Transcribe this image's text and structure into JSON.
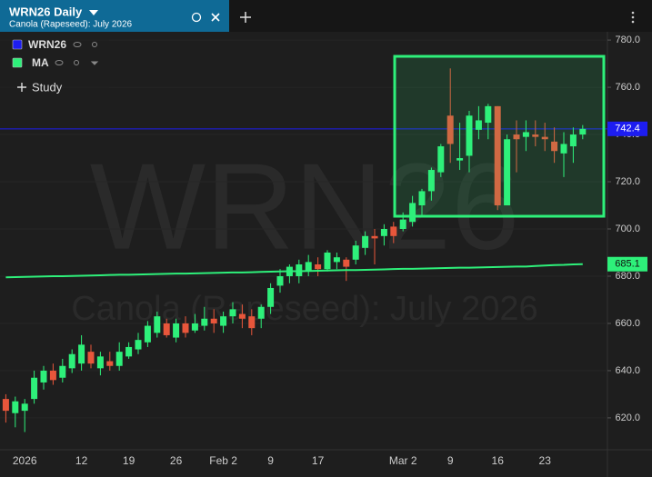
{
  "tab": {
    "title": "WRN26 Daily",
    "subtitle": "Canola (Rapeseed): July 2026"
  },
  "study_button": "Study",
  "chart_data": {
    "type": "candlestick",
    "categories": [
      null,
      null,
      "2026",
      null,
      null,
      null,
      null,
      null,
      "12",
      null,
      null,
      null,
      null,
      "19",
      null,
      null,
      null,
      null,
      "26",
      null,
      null,
      null,
      null,
      "Feb 2",
      null,
      null,
      null,
      null,
      "9",
      null,
      null,
      null,
      null,
      "17",
      null,
      null,
      null,
      null,
      null,
      null,
      null,
      null,
      "Mar 2",
      null,
      null,
      null,
      null,
      "9",
      null,
      null,
      null,
      null,
      "16",
      null,
      null,
      null,
      null,
      "23",
      null,
      null,
      null,
      null
    ],
    "series": [
      {
        "name": "WRN26",
        "color": "#1d1df0",
        "open": [
          628,
          622,
          623,
          628,
          635,
          640,
          637,
          641,
          643,
          648,
          641,
          644,
          642,
          646,
          649,
          652,
          656,
          660,
          654,
          660,
          657,
          659,
          662,
          659,
          663,
          664,
          663,
          662,
          667,
          676,
          680,
          680,
          682,
          685,
          683,
          686,
          687,
          687,
          692,
          697,
          697,
          701,
          700,
          703,
          710,
          716,
          724,
          748,
          729,
          731,
          742,
          745,
          752,
          710,
          740,
          739,
          740,
          739,
          737,
          732,
          735,
          740
        ],
        "high": [
          630,
          629,
          628,
          640,
          642,
          643,
          645,
          649,
          655,
          651,
          648,
          648,
          652,
          652,
          656,
          661,
          665,
          662,
          662,
          663,
          664,
          667,
          666,
          665,
          669,
          668,
          666,
          668,
          677,
          683,
          685,
          687,
          689,
          688,
          691,
          690,
          688,
          695,
          699,
          700,
          702,
          703,
          707,
          714,
          717,
          726,
          736,
          768,
          745,
          750,
          752,
          753,
          752,
          740,
          746,
          746,
          746,
          745,
          743,
          741,
          743,
          744
        ],
        "low": [
          618,
          616,
          614,
          626,
          632,
          634,
          635,
          639,
          640,
          641,
          638,
          640,
          640,
          645,
          647,
          650,
          654,
          654,
          652,
          654,
          656,
          657,
          656,
          656,
          660,
          658,
          655,
          658,
          664,
          673,
          677,
          677,
          680,
          680,
          682,
          683,
          678,
          685,
          689,
          685,
          693,
          694,
          699,
          701,
          705,
          712,
          722,
          728,
          725,
          724,
          738,
          738,
          708,
          710,
          724,
          733,
          735,
          733,
          728,
          722,
          728,
          738
        ],
        "close": [
          623,
          627,
          626,
          637,
          640,
          636,
          642,
          647,
          651,
          643,
          646,
          642,
          648,
          650,
          653,
          659,
          663,
          655,
          660,
          656,
          660,
          662,
          660,
          663,
          666,
          662,
          658,
          667,
          675,
          680,
          684,
          685,
          686,
          683,
          690,
          688,
          684,
          693,
          697,
          696,
          700,
          697,
          704,
          711,
          716,
          725,
          735,
          736,
          730,
          748,
          746,
          752,
          710,
          738,
          738,
          741,
          739,
          738,
          733,
          736,
          740,
          742.4
        ]
      },
      {
        "name": "MA",
        "type": "line",
        "color": "#2ef07a",
        "values": [
          679.5,
          679.6,
          679.7,
          679.8,
          679.9,
          680.0,
          680.0,
          680.1,
          680.2,
          680.3,
          680.4,
          680.5,
          680.6,
          680.6,
          680.7,
          680.8,
          680.9,
          681.0,
          681.1,
          681.1,
          681.2,
          681.3,
          681.4,
          681.5,
          681.6,
          681.6,
          681.7,
          681.8,
          681.9,
          682.0,
          682.1,
          682.1,
          682.2,
          682.3,
          682.4,
          682.5,
          682.6,
          682.6,
          682.7,
          682.8,
          682.9,
          683.0,
          683.1,
          683.1,
          683.2,
          683.3,
          683.4,
          683.5,
          683.6,
          683.6,
          683.7,
          683.8,
          683.9,
          684.0,
          684.1,
          684.1,
          684.3,
          684.5,
          684.7,
          684.8,
          685.0,
          685.1
        ]
      }
    ],
    "up_color": "#2ef07a",
    "down_color": "#e8563b",
    "ylim": [
      606.5,
      783.5
    ],
    "yticks": [
      {
        "value": 620,
        "label": "620.0"
      },
      {
        "value": 640,
        "label": "640.0"
      },
      {
        "value": 660,
        "label": "660.0"
      },
      {
        "value": 680,
        "label": "680.0"
      },
      {
        "value": 700,
        "label": "700.0"
      },
      {
        "value": 720,
        "label": "720.0"
      },
      {
        "value": 740,
        "label": "740.0"
      },
      {
        "value": 760,
        "label": "760.0"
      },
      {
        "value": 780,
        "label": "780.0"
      }
    ],
    "grid": true
  }
}
